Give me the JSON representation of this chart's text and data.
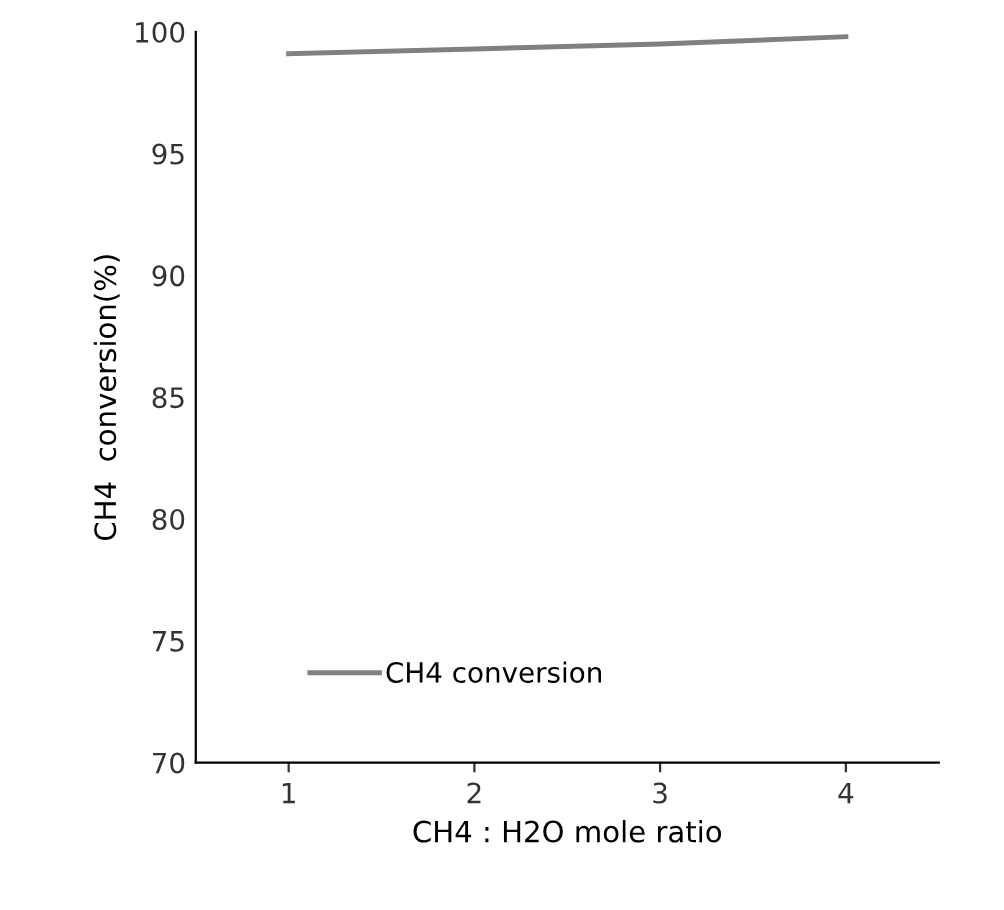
{
  "chart_data": {
    "type": "line",
    "xlabel": "CH4 : H2O mole ratio",
    "ylabel": "CH4  conversion(%)",
    "categories": [
      "1",
      "2",
      "3",
      "4"
    ],
    "series": [
      {
        "name": "CH4 conversion",
        "color": "#808080",
        "values": [
          99.1,
          99.3,
          99.5,
          99.8
        ]
      }
    ],
    "ylim": [
      70,
      100
    ],
    "yticks": [
      70,
      75,
      80,
      85,
      90,
      95,
      100
    ],
    "grid": false,
    "legend": "bottom left",
    "marker": "none",
    "line_style": "solid"
  }
}
